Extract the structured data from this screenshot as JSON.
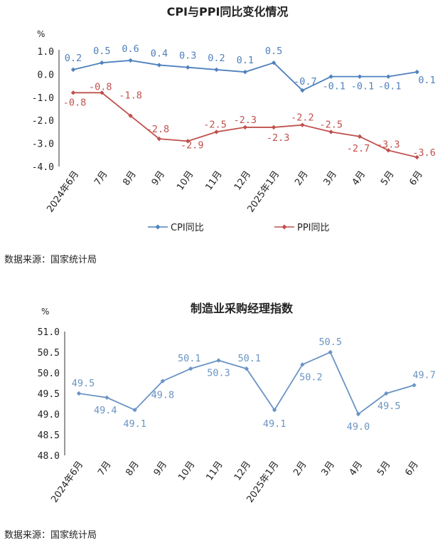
{
  "chart_data": [
    {
      "type": "line",
      "title": "CPI与PPI同比变化情况",
      "unit": "%",
      "categories": [
        "2024年6月",
        "7月",
        "8月",
        "9月",
        "10月",
        "11月",
        "12月",
        "2025年1月",
        "2月",
        "3月",
        "4月",
        "5月",
        "6月"
      ],
      "ylim": [
        -4.0,
        1.0
      ],
      "yticks": [
        "1.0",
        "0.0",
        "-1.0",
        "-2.0",
        "-3.0",
        "-4.0"
      ],
      "ytick_values": [
        1,
        0,
        -1,
        -2,
        -3,
        -4
      ],
      "legend_position": "bottom",
      "series": [
        {
          "name": "CPI同比",
          "color": "#4f81bd",
          "values": [
            0.2,
            0.5,
            0.6,
            0.4,
            0.3,
            0.2,
            0.1,
            0.5,
            -0.7,
            -0.1,
            -0.1,
            -0.1,
            0.1
          ],
          "labels": [
            "0.2",
            "0.5",
            "0.6",
            "0.4",
            "0.3",
            "0.2",
            "0.1",
            "0.5",
            "-0.7",
            "-0.1",
            "-0.1",
            "-0.1",
            "0.1"
          ]
        },
        {
          "name": "PPI同比",
          "color": "#c0504d",
          "values": [
            -0.8,
            -0.8,
            -1.8,
            -2.8,
            -2.9,
            -2.5,
            -2.3,
            -2.3,
            -2.2,
            -2.5,
            -2.7,
            -3.3,
            -3.6
          ],
          "labels": [
            "-0.8",
            "-0.8",
            "-1.8",
            "-2.8",
            "-2.9",
            "-2.5",
            "-2.3",
            "-2.3",
            "-2.2",
            "-2.5",
            "-2.7",
            "-3.3",
            "-3.6"
          ]
        }
      ],
      "source": "数据来源：国家统计局"
    },
    {
      "type": "line",
      "title": "制造业采购经理指数",
      "unit": "%",
      "categories": [
        "2024年6月",
        "7月",
        "8月",
        "9月",
        "10月",
        "11月",
        "12月",
        "2025年1月",
        "2月",
        "3月",
        "4月",
        "5月",
        "6月"
      ],
      "ylim": [
        48.0,
        51.0
      ],
      "yticks": [
        "51.0",
        "50.5",
        "50.0",
        "49.5",
        "49.0",
        "48.5",
        "48.0"
      ],
      "ytick_values": [
        51.0,
        50.5,
        50.0,
        49.5,
        49.0,
        48.5,
        48.0
      ],
      "series": [
        {
          "color": "#6a94c4",
          "values": [
            49.5,
            49.4,
            49.1,
            49.8,
            50.1,
            50.3,
            50.1,
            49.1,
            50.2,
            50.5,
            49.0,
            49.5,
            49.7
          ],
          "labels": [
            "49.5",
            "49.4",
            "49.1",
            "49.8",
            "50.1",
            "50.3",
            "50.1",
            "49.1",
            "50.2",
            "50.5",
            "49.0",
            "49.5",
            "49.7"
          ]
        }
      ],
      "source": "数据来源：国家统计局"
    }
  ]
}
